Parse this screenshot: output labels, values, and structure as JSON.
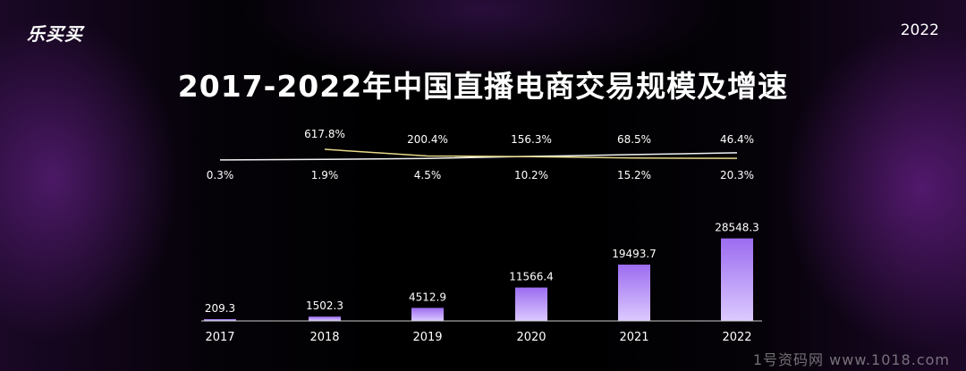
{
  "header": {
    "logo": "乐买买",
    "year_tag": "2022",
    "title": "2017-2022年中国直播电商交易规模及增速"
  },
  "watermark": "1号资码网 www.1018.com",
  "colors": {
    "bar_top": "#9c6cf0",
    "bar_bottom": "#dccaff",
    "growth_line": "#e8d98a",
    "baseline_line": "#f2f2f2",
    "axis": "#cccccc"
  },
  "chart_data": {
    "type": "bar",
    "categories": [
      "2017",
      "2018",
      "2019",
      "2020",
      "2021",
      "2022"
    ],
    "series": [
      {
        "values": [
          209.3,
          1502.3,
          4512.9,
          11566.4,
          19493.7,
          28548.3
        ]
      }
    ],
    "line_series": [
      {
        "values": [
          617.8,
          200.4,
          156.3,
          68.5,
          46.4
        ],
        "labels": [
          "617.8%",
          "200.4%",
          "156.3%",
          "68.5%",
          "46.4%"
        ],
        "x_categories": [
          "2018",
          "2019",
          "2020",
          "2021",
          "2022"
        ]
      },
      {
        "values": [
          0.3,
          1.9,
          4.5,
          10.2,
          15.2,
          20.3
        ],
        "labels": [
          "0.3%",
          "1.9%",
          "4.5%",
          "10.2%",
          "15.2%",
          "20.3%"
        ],
        "x_categories": [
          "2017",
          "2018",
          "2019",
          "2020",
          "2021",
          "2022"
        ]
      }
    ],
    "value_labels": [
      "209.3",
      "1502.3",
      "4512.9",
      "11566.4",
      "19493.7",
      "28548.3"
    ],
    "ylim": [
      0,
      30000
    ],
    "grid": false,
    "legend": "none"
  }
}
